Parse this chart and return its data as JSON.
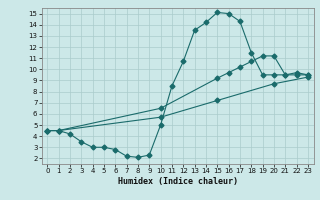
{
  "xlabel": "Humidex (Indice chaleur)",
  "bg_color": "#cce8e8",
  "grid_color": "#aacccc",
  "line_color": "#1a6b6b",
  "xlim": [
    -0.5,
    23.5
  ],
  "ylim": [
    1.5,
    15.5
  ],
  "xticks": [
    0,
    1,
    2,
    3,
    4,
    5,
    6,
    7,
    8,
    9,
    10,
    11,
    12,
    13,
    14,
    15,
    16,
    17,
    18,
    19,
    20,
    21,
    22,
    23
  ],
  "yticks": [
    2,
    3,
    4,
    5,
    6,
    7,
    8,
    9,
    10,
    11,
    12,
    13,
    14,
    15
  ],
  "line1_x": [
    0,
    1,
    2,
    3,
    4,
    5,
    6,
    7,
    8,
    9,
    10,
    11,
    12,
    13,
    14,
    15,
    16,
    17,
    18,
    19,
    20,
    21,
    22,
    23
  ],
  "line1_y": [
    4.5,
    4.5,
    4.2,
    3.5,
    3.0,
    3.0,
    2.8,
    2.2,
    2.1,
    2.3,
    5.0,
    8.5,
    10.7,
    13.5,
    14.2,
    15.1,
    15.0,
    14.3,
    11.5,
    9.5,
    9.5,
    9.5,
    9.5,
    9.5
  ],
  "line2_x": [
    0,
    1,
    10,
    15,
    16,
    17,
    18,
    19,
    20,
    21,
    22,
    23
  ],
  "line2_y": [
    4.5,
    4.5,
    6.5,
    9.2,
    9.7,
    10.2,
    10.7,
    11.2,
    11.2,
    9.5,
    9.7,
    9.5
  ],
  "line3_x": [
    0,
    1,
    10,
    15,
    20,
    23
  ],
  "line3_y": [
    4.5,
    4.5,
    5.7,
    7.2,
    8.7,
    9.3
  ]
}
